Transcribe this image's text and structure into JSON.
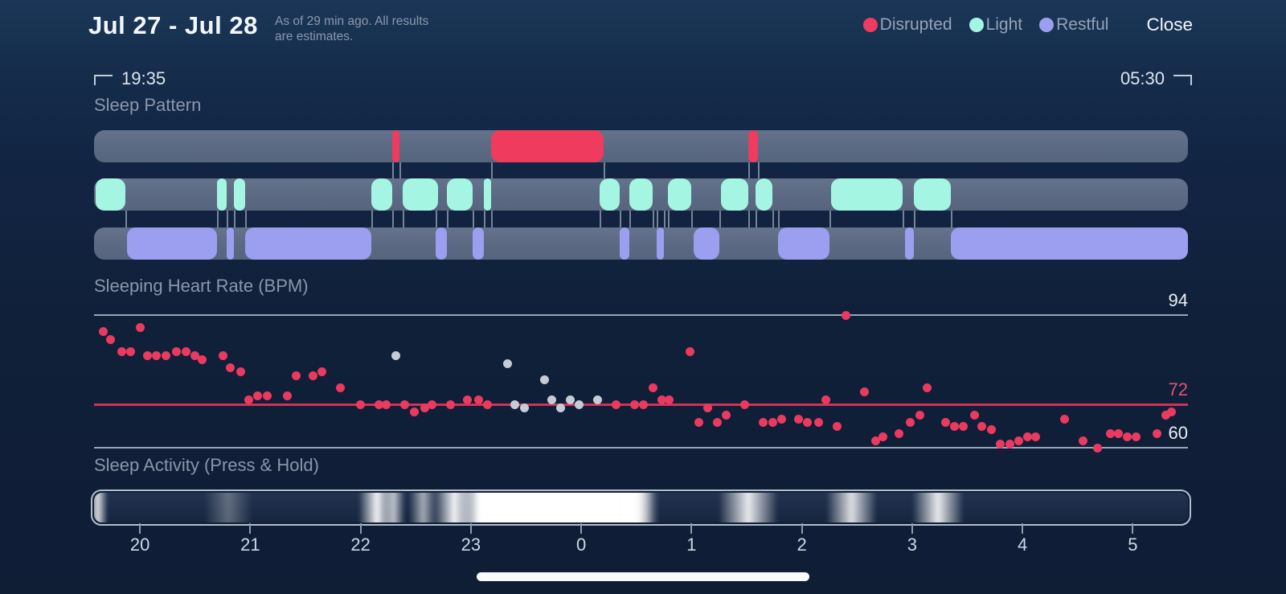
{
  "header": {
    "title": "Jul 27 - Jul 28",
    "subtitle_line1": "As of 29 min ago. All results",
    "subtitle_line2": "are estimates.",
    "legend": [
      {
        "label": "Disrupted",
        "color": "#ee3b5e"
      },
      {
        "label": "Light",
        "color": "#a5f5e3"
      },
      {
        "label": "Restful",
        "color": "#9c9ef0"
      }
    ],
    "close_label": "Close"
  },
  "time_window": {
    "start_label": "19:35",
    "end_label": "05:30"
  },
  "sections": {
    "sleep_pattern_label": "Sleep Pattern",
    "heart_rate_label": "Sleeping Heart Rate (BPM)",
    "activity_label": "Sleep Activity (Press & Hold)"
  },
  "x_axis": {
    "ticks": [
      {
        "label": "20",
        "t": "20:00"
      },
      {
        "label": "21",
        "t": "21:00"
      },
      {
        "label": "22",
        "t": "22:00"
      },
      {
        "label": "23",
        "t": "23:00"
      },
      {
        "label": "0",
        "t": "00:00"
      },
      {
        "label": "1",
        "t": "01:00"
      },
      {
        "label": "2",
        "t": "02:00"
      },
      {
        "label": "3",
        "t": "03:00"
      },
      {
        "label": "4",
        "t": "04:00"
      },
      {
        "label": "5",
        "t": "05:00"
      }
    ]
  },
  "chart_data": [
    {
      "type": "timeline",
      "title": "Sleep Pattern",
      "x_range": [
        "19:35",
        "05:30"
      ],
      "track_base_color": "#5b6a82",
      "tracks": [
        {
          "name": "Disrupted",
          "color": "#ee3b5e",
          "segments": [
            [
              "22:17",
              "22:21"
            ],
            [
              "23:11",
              "00:12"
            ],
            [
              "01:31",
              "01:36"
            ]
          ]
        },
        {
          "name": "Light",
          "color": "#a5f5e3",
          "segments": [
            [
              "19:36",
              "19:52"
            ],
            [
              "20:42",
              "20:47"
            ],
            [
              "20:51",
              "20:57"
            ],
            [
              "22:06",
              "22:17"
            ],
            [
              "22:23",
              "22:42"
            ],
            [
              "22:47",
              "23:01"
            ],
            [
              "23:07",
              "23:11"
            ],
            [
              "00:10",
              "00:21"
            ],
            [
              "00:26",
              "00:39"
            ],
            [
              "00:47",
              "01:00"
            ],
            [
              "01:16",
              "01:31"
            ],
            [
              "01:35",
              "01:44"
            ],
            [
              "02:16",
              "02:55"
            ],
            [
              "03:01",
              "03:21"
            ]
          ]
        },
        {
          "name": "Restful",
          "color": "#9c9ef0",
          "segments": [
            [
              "19:53",
              "20:42"
            ],
            [
              "20:47",
              "20:51"
            ],
            [
              "20:57",
              "22:06"
            ],
            [
              "22:41",
              "22:47"
            ],
            [
              "23:01",
              "23:07"
            ],
            [
              "00:21",
              "00:26"
            ],
            [
              "00:41",
              "00:45"
            ],
            [
              "01:01",
              "01:15"
            ],
            [
              "01:47",
              "02:15"
            ],
            [
              "02:56",
              "03:01"
            ],
            [
              "03:21",
              "05:30"
            ]
          ]
        }
      ]
    },
    {
      "type": "scatter",
      "title": "Sleeping Heart Rate (BPM)",
      "ylabel": "BPM",
      "gridlines": [
        {
          "bpm": 94,
          "label": "94",
          "line_color": "#97a5ba",
          "label_color": "#e9eef6"
        },
        {
          "bpm": 72,
          "label": "72",
          "line_color": "#d03258",
          "label_color": "#dd5372"
        },
        {
          "bpm": 60,
          "label": "60",
          "line_color": "#97a5ba",
          "label_color": "#e9eef6"
        }
      ],
      "series": [
        {
          "name": "heart-rate",
          "color": "#ea3a5f",
          "points": [
            [
              "19:40",
              90
            ],
            [
              "19:44",
              88
            ],
            [
              "19:50",
              85
            ],
            [
              "19:55",
              85
            ],
            [
              "20:00",
              91
            ],
            [
              "20:04",
              84
            ],
            [
              "20:09",
              84
            ],
            [
              "20:14",
              84
            ],
            [
              "20:20",
              85
            ],
            [
              "20:25",
              85
            ],
            [
              "20:30",
              84
            ],
            [
              "20:34",
              83
            ],
            [
              "20:45",
              84
            ],
            [
              "20:49",
              81
            ],
            [
              "20:55",
              80
            ],
            [
              "20:59",
              73
            ],
            [
              "21:04",
              74
            ],
            [
              "21:09",
              74
            ],
            [
              "21:20",
              74
            ],
            [
              "21:25",
              79
            ],
            [
              "21:34",
              79
            ],
            [
              "21:39",
              80
            ],
            [
              "21:49",
              76
            ],
            [
              "22:00",
              72
            ],
            [
              "22:10",
              72
            ],
            [
              "22:14",
              72
            ],
            [
              "22:24",
              72
            ],
            [
              "22:29",
              70
            ],
            [
              "22:35",
              71
            ],
            [
              "22:39",
              72
            ],
            [
              "22:49",
              72
            ],
            [
              "22:58",
              73
            ],
            [
              "23:04",
              73
            ],
            [
              "23:09",
              72
            ],
            [
              "00:19",
              72
            ],
            [
              "00:29",
              72
            ],
            [
              "00:34",
              72
            ],
            [
              "00:39",
              76
            ],
            [
              "00:44",
              73
            ],
            [
              "00:48",
              73
            ],
            [
              "00:59",
              85
            ],
            [
              "01:04",
              67
            ],
            [
              "01:09",
              71
            ],
            [
              "01:14",
              67
            ],
            [
              "01:19",
              69
            ],
            [
              "01:29",
              72
            ],
            [
              "01:39",
              67
            ],
            [
              "01:44",
              67
            ],
            [
              "01:49",
              68
            ],
            [
              "01:58",
              68
            ],
            [
              "02:03",
              67
            ],
            [
              "02:09",
              67
            ],
            [
              "02:13",
              73
            ],
            [
              "02:19",
              66
            ],
            [
              "02:24",
              94
            ],
            [
              "02:34",
              75
            ],
            [
              "02:40",
              62
            ],
            [
              "02:44",
              63
            ],
            [
              "02:53",
              64
            ],
            [
              "02:59",
              67
            ],
            [
              "03:04",
              69
            ],
            [
              "03:08",
              76
            ],
            [
              "03:18",
              67
            ],
            [
              "03:23",
              66
            ],
            [
              "03:28",
              66
            ],
            [
              "03:34",
              69
            ],
            [
              "03:38",
              66
            ],
            [
              "03:43",
              65
            ],
            [
              "03:48",
              61
            ],
            [
              "03:53",
              61
            ],
            [
              "03:58",
              62
            ],
            [
              "04:03",
              63
            ],
            [
              "04:07",
              63
            ],
            [
              "04:23",
              68
            ],
            [
              "04:33",
              62
            ],
            [
              "04:41",
              60
            ],
            [
              "04:48",
              64
            ],
            [
              "04:52",
              64
            ],
            [
              "04:57",
              63
            ],
            [
              "05:02",
              63
            ],
            [
              "05:13",
              64
            ],
            [
              "05:18",
              69
            ],
            [
              "05:21",
              70
            ]
          ]
        },
        {
          "name": "heart-rate-secondary",
          "color": "#c5ccd5",
          "points": [
            [
              "22:19",
              84
            ],
            [
              "23:20",
              82
            ],
            [
              "23:24",
              72
            ],
            [
              "23:29",
              71
            ],
            [
              "23:40",
              78
            ],
            [
              "23:44",
              73
            ],
            [
              "23:49",
              71
            ],
            [
              "23:54",
              73
            ],
            [
              "23:59",
              72
            ],
            [
              "00:09",
              73
            ]
          ]
        }
      ]
    },
    {
      "type": "heatmap",
      "title": "Sleep Activity",
      "peaks": [
        {
          "t": "19:37",
          "width_min": 7,
          "intensity": 0.85
        },
        {
          "t": "20:48",
          "width_min": 17,
          "intensity": 0.3
        },
        {
          "t": "22:09",
          "width_min": 13,
          "intensity": 0.95
        },
        {
          "t": "22:18",
          "width_min": 8,
          "intensity": 0.7
        },
        {
          "t": "22:34",
          "width_min": 10,
          "intensity": 0.6
        },
        {
          "t": "22:51",
          "width_min": 15,
          "intensity": 0.95
        },
        {
          "t": "23:05",
          "width_min": 6,
          "intensity": 0.5
        },
        {
          "t": "23:47",
          "width_min": 72,
          "intensity": 1.0
        },
        {
          "t": "00:30",
          "width_min": 12,
          "intensity": 0.85
        },
        {
          "t": "01:31",
          "width_min": 21,
          "intensity": 0.9
        },
        {
          "t": "02:27",
          "width_min": 18,
          "intensity": 0.85
        },
        {
          "t": "03:14",
          "width_min": 18,
          "intensity": 0.9
        }
      ]
    }
  ]
}
